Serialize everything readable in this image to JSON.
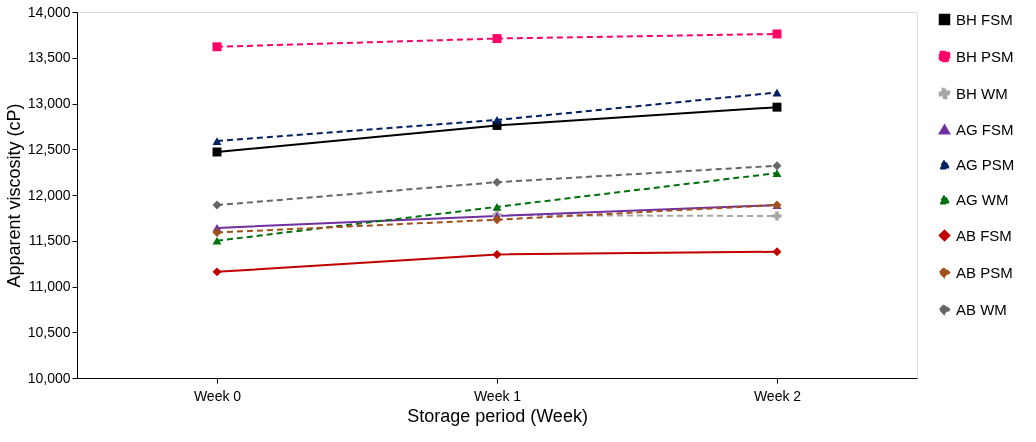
{
  "chart_data": {
    "type": "line",
    "xlabel": "Storage period (Week)",
    "ylabel": "Apparent viscosity (cP)",
    "categories": [
      "Week 0",
      "Week 1",
      "Week 2"
    ],
    "ylim": [
      10000,
      14000
    ],
    "yticks": [
      {
        "value": 10000,
        "label": "10,000"
      },
      {
        "value": 10500,
        "label": "10,500"
      },
      {
        "value": 11000,
        "label": "11,000"
      },
      {
        "value": 11500,
        "label": "11,500"
      },
      {
        "value": 12000,
        "label": "12,000"
      },
      {
        "value": 12500,
        "label": "12,500"
      },
      {
        "value": 13000,
        "label": "13,000"
      },
      {
        "value": 13500,
        "label": "13,500"
      },
      {
        "value": 14000,
        "label": "14,000"
      }
    ],
    "grid": false,
    "legend": "right",
    "series": [
      {
        "name": "BH FSM",
        "color": "#000000",
        "marker": "square",
        "line_style": "solid",
        "values": [
          12470,
          12760,
          12960
        ]
      },
      {
        "name": "BH PSM",
        "color": "#ff0066",
        "marker": "square",
        "line_style": "dashed",
        "values": [
          13620,
          13710,
          13760
        ]
      },
      {
        "name": "BH WM",
        "color": "#a6a6a6",
        "marker": "cross",
        "line_style": "dashed",
        "values": [
          null,
          11780,
          11770
        ]
      },
      {
        "name": "AG FSM",
        "color": "#7030a0",
        "marker": "triangle",
        "line_style": "solid",
        "values": [
          11640,
          11770,
          11890
        ]
      },
      {
        "name": "AG PSM",
        "color": "#002060",
        "marker": "triangle",
        "line_style": "dashed",
        "values": [
          12590,
          12820,
          13120
        ]
      },
      {
        "name": "AG WM",
        "color": "#00700f",
        "marker": "triangle",
        "line_style": "dashed",
        "values": [
          11500,
          11870,
          12240
        ]
      },
      {
        "name": "AB FSM",
        "color": "#c00000",
        "marker": "diamond",
        "line_style": "solid",
        "values": [
          11160,
          11350,
          11380
        ]
      },
      {
        "name": "AB PSM",
        "color": "#a0501a",
        "marker": "diamond",
        "line_style": "dashed",
        "values": [
          11590,
          11730,
          11890
        ]
      },
      {
        "name": "AB WM",
        "color": "#666666",
        "marker": "diamond",
        "line_style": "dashed",
        "values": [
          11890,
          12140,
          12320
        ]
      }
    ]
  }
}
